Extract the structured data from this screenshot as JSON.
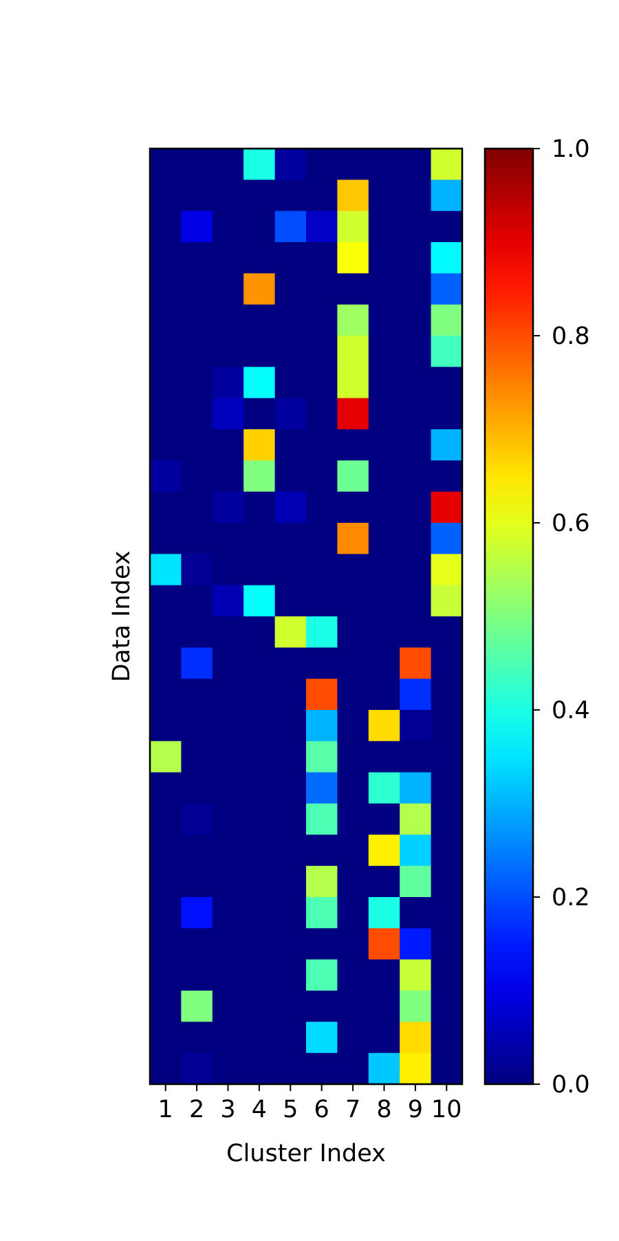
{
  "chart_data": {
    "type": "heatmap",
    "title": "",
    "xlabel": "Cluster Index",
    "ylabel": "Data Index",
    "x_categories": [
      "1",
      "2",
      "3",
      "4",
      "5",
      "6",
      "7",
      "8",
      "9",
      "10"
    ],
    "y_tick_labels": [],
    "colormap": "jet",
    "colorbar": {
      "range": [
        0.0,
        1.0
      ],
      "ticks": [
        0.0,
        0.2,
        0.4,
        0.6,
        0.8,
        1.0
      ],
      "tick_labels": [
        "0.0",
        "0.2",
        "0.4",
        "0.6",
        "0.8",
        "1.0"
      ]
    },
    "values": [
      [
        0.0,
        0.0,
        0.0,
        0.4,
        0.03,
        0.0,
        0.0,
        0.0,
        0.0,
        0.58
      ],
      [
        0.0,
        0.0,
        0.0,
        0.0,
        0.0,
        0.0,
        0.68,
        0.0,
        0.0,
        0.3
      ],
      [
        0.0,
        0.1,
        0.0,
        0.0,
        0.2,
        0.07,
        0.58,
        0.0,
        0.0,
        0.0
      ],
      [
        0.0,
        0.0,
        0.0,
        0.0,
        0.0,
        0.0,
        0.62,
        0.0,
        0.0,
        0.37
      ],
      [
        0.0,
        0.0,
        0.0,
        0.73,
        0.0,
        0.0,
        0.0,
        0.0,
        0.0,
        0.22
      ],
      [
        0.0,
        0.0,
        0.0,
        0.0,
        0.0,
        0.0,
        0.53,
        0.0,
        0.0,
        0.5
      ],
      [
        0.0,
        0.0,
        0.0,
        0.0,
        0.0,
        0.0,
        0.58,
        0.0,
        0.0,
        0.44
      ],
      [
        0.0,
        0.0,
        0.03,
        0.38,
        0.0,
        0.0,
        0.58,
        0.0,
        0.0,
        0.0
      ],
      [
        0.0,
        0.0,
        0.06,
        0.0,
        0.03,
        0.0,
        0.9,
        0.0,
        0.0,
        0.0
      ],
      [
        0.0,
        0.0,
        0.0,
        0.67,
        0.0,
        0.0,
        0.0,
        0.0,
        0.0,
        0.3
      ],
      [
        0.03,
        0.0,
        0.0,
        0.5,
        0.0,
        0.0,
        0.48,
        0.0,
        0.0,
        0.0
      ],
      [
        0.0,
        0.0,
        0.03,
        0.0,
        0.05,
        0.0,
        0.0,
        0.0,
        0.0,
        0.9
      ],
      [
        0.0,
        0.0,
        0.0,
        0.0,
        0.0,
        0.0,
        0.74,
        0.0,
        0.0,
        0.22
      ],
      [
        0.35,
        0.02,
        0.0,
        0.0,
        0.0,
        0.0,
        0.0,
        0.0,
        0.0,
        0.6
      ],
      [
        0.0,
        0.0,
        0.05,
        0.38,
        0.0,
        0.0,
        0.0,
        0.0,
        0.0,
        0.57
      ],
      [
        0.0,
        0.0,
        0.0,
        0.0,
        0.58,
        0.4,
        0.0,
        0.0,
        0.0,
        0.0
      ],
      [
        0.0,
        0.17,
        0.0,
        0.0,
        0.0,
        0.0,
        0.0,
        0.0,
        0.8,
        0.0
      ],
      [
        0.0,
        0.0,
        0.0,
        0.0,
        0.0,
        0.8,
        0.0,
        0.0,
        0.17,
        0.0
      ],
      [
        0.0,
        0.0,
        0.0,
        0.0,
        0.0,
        0.3,
        0.0,
        0.66,
        0.02,
        0.0
      ],
      [
        0.55,
        0.0,
        0.0,
        0.0,
        0.0,
        0.46,
        0.0,
        0.0,
        0.0,
        0.0
      ],
      [
        0.0,
        0.0,
        0.0,
        0.0,
        0.0,
        0.23,
        0.0,
        0.42,
        0.3,
        0.0
      ],
      [
        0.0,
        0.02,
        0.0,
        0.0,
        0.0,
        0.45,
        0.0,
        0.0,
        0.55,
        0.0
      ],
      [
        0.0,
        0.0,
        0.0,
        0.0,
        0.0,
        0.0,
        0.0,
        0.64,
        0.33,
        0.0
      ],
      [
        0.0,
        0.0,
        0.0,
        0.0,
        0.0,
        0.55,
        0.0,
        0.0,
        0.47,
        0.0
      ],
      [
        0.0,
        0.14,
        0.0,
        0.0,
        0.0,
        0.45,
        0.0,
        0.4,
        0.0,
        0.0
      ],
      [
        0.0,
        0.0,
        0.0,
        0.0,
        0.0,
        0.0,
        0.0,
        0.8,
        0.15,
        0.0
      ],
      [
        0.0,
        0.0,
        0.0,
        0.0,
        0.0,
        0.45,
        0.0,
        0.0,
        0.57,
        0.0
      ],
      [
        0.0,
        0.5,
        0.0,
        0.0,
        0.0,
        0.0,
        0.0,
        0.0,
        0.5,
        0.0
      ],
      [
        0.0,
        0.0,
        0.0,
        0.0,
        0.0,
        0.34,
        0.0,
        0.0,
        0.66,
        0.0
      ],
      [
        0.0,
        0.02,
        0.0,
        0.0,
        0.0,
        0.0,
        0.0,
        0.32,
        0.64,
        0.0
      ]
    ]
  }
}
